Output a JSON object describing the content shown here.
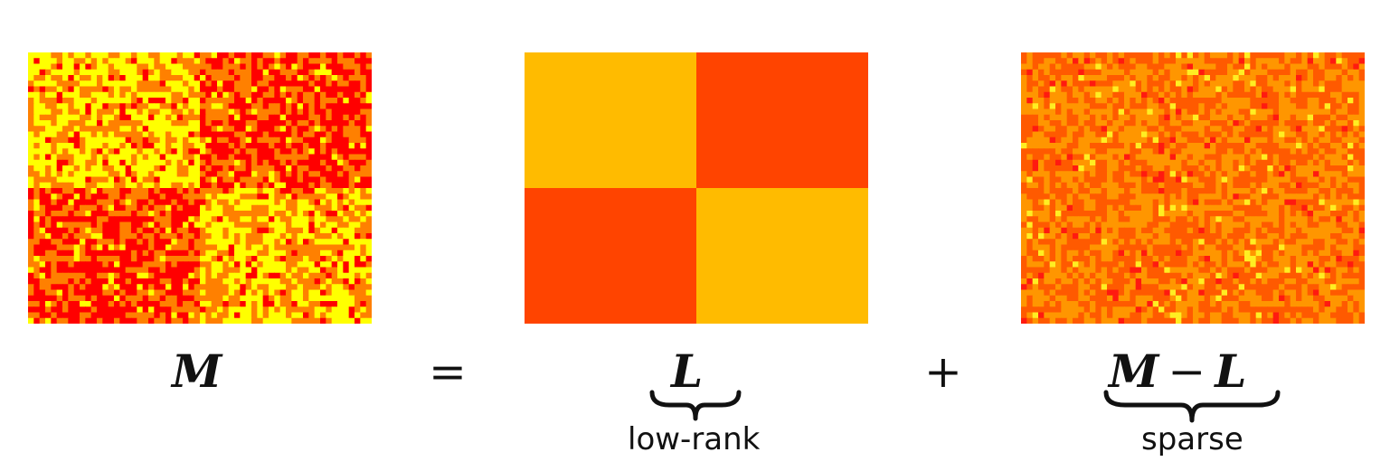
{
  "matrices": {
    "m": {
      "seed": 11,
      "colors": [
        "#ff0000",
        "#ff8000",
        "#ffff00"
      ]
    },
    "l": {
      "block_colors": {
        "diag": "#ffbb00",
        "off": "#ff4400"
      }
    },
    "s": {
      "seed": 37,
      "colors": [
        "#ff5a00",
        "#ff9600",
        "#ff1a10",
        "#ffee22"
      ]
    }
  },
  "equation": {
    "m_symbol": "M",
    "equals_sign": "=",
    "l_symbol": "L",
    "plus_sign": "+",
    "residual_m": "M",
    "minus_sign": "−",
    "residual_l": "L",
    "l_caption": "low-rank",
    "s_caption": "sparse"
  }
}
